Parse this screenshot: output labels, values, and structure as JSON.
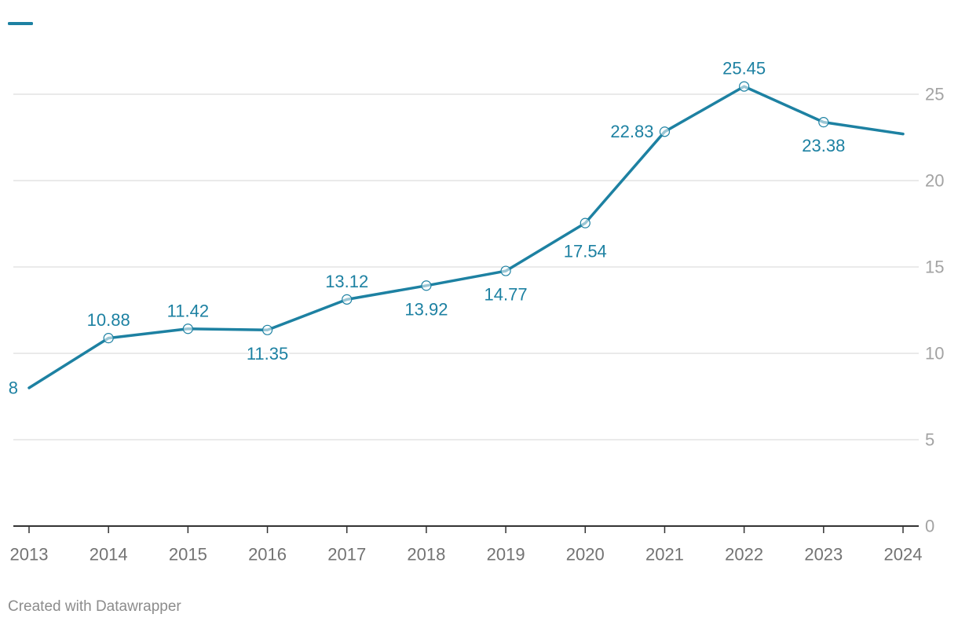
{
  "chart_data": {
    "type": "line",
    "categories": [
      "2013",
      "2014",
      "2015",
      "2016",
      "2017",
      "2018",
      "2019",
      "2020",
      "2021",
      "2022",
      "2023",
      "2024"
    ],
    "series": [
      {
        "color": "#1d81a2",
        "values": [
          8,
          10.88,
          11.42,
          11.35,
          13.12,
          13.92,
          14.77,
          17.54,
          22.83,
          25.45,
          23.38,
          22.7
        ]
      }
    ],
    "label_positions": [
      "left",
      "above",
      "above",
      "below",
      "above",
      "below",
      "below",
      "below",
      "left",
      "above",
      "below",
      "none"
    ],
    "markers": [
      false,
      true,
      true,
      true,
      true,
      true,
      true,
      true,
      true,
      true,
      true,
      false
    ],
    "ylim": [
      0,
      25
    ],
    "y_ticks": [
      0,
      5,
      10,
      15,
      20,
      25
    ],
    "y_axis_side": "right",
    "grid": true,
    "legend": "top-left"
  },
  "footer": {
    "credit": "Created with Datawrapper"
  }
}
